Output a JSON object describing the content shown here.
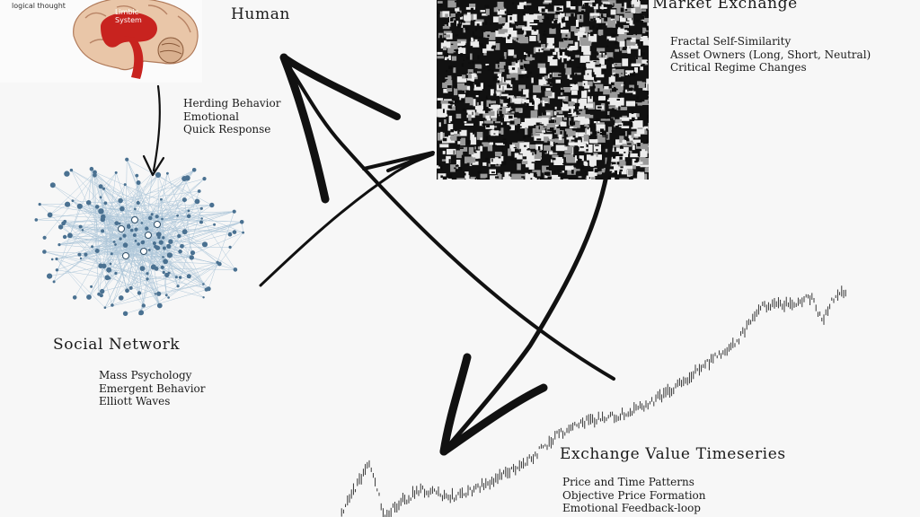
{
  "brain": {
    "caption": "logical thought",
    "region_label_line1": "Limbic",
    "region_label_line2": "System"
  },
  "human": {
    "title": "Human",
    "traits": [
      "Herding Behavior",
      "Emotional",
      "Quick Response"
    ]
  },
  "market": {
    "title": "Market Exchange",
    "traits": [
      "Fractal Self-Similarity",
      "Asset Owners (Long, Short, Neutral)",
      "Critical Regime Changes"
    ]
  },
  "social": {
    "title": "Social Network",
    "traits": [
      "Mass Psychology",
      "Emergent Behavior",
      "Elliott Waves"
    ]
  },
  "timeseries": {
    "title": "Exchange Value Timeseries",
    "traits": [
      "Price and Time Patterns",
      "Objective Price Formation",
      "Emotional Feedback-loop"
    ]
  },
  "colors": {
    "network_node": "#4a7191",
    "network_edge": "#8fb2cc",
    "brain_red": "#c8231f",
    "ink": "#111111"
  }
}
